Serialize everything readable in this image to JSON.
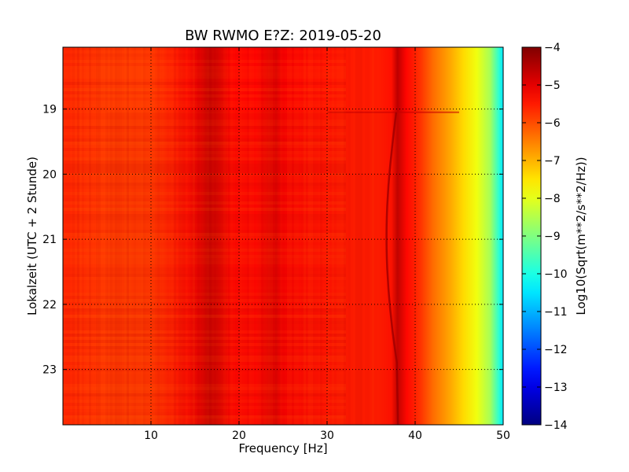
{
  "chart_data": {
    "type": "heatmap",
    "title": "BW RWMO E?Z: 2019-05-20",
    "xlabel": "Frequency [Hz]",
    "ylabel": "Lokalzeit (UTC + 2 Stunde)",
    "xlim": [
      0,
      50
    ],
    "ylim": [
      23.85,
      18.05
    ],
    "x_ticks": [
      10,
      20,
      30,
      40,
      50
    ],
    "y_ticks": [
      19,
      20,
      21,
      22,
      23
    ],
    "grid": true,
    "grid_style": "dotted",
    "colormap": "jet",
    "colorbar": {
      "label": "Log10(Sqrt(m**2/s**2/Hz))",
      "range": [
        -14,
        -4
      ],
      "ticks": [
        -4,
        -5,
        -6,
        -7,
        -8,
        -9,
        -10,
        -11,
        -12,
        -13,
        -14
      ]
    },
    "spectral_profile": {
      "frequency_hz": [
        0,
        5,
        10,
        14,
        15.5,
        16.5,
        17.5,
        19,
        22,
        23.5,
        24.2,
        25,
        28,
        33,
        36,
        37.3,
        38,
        39,
        40.5,
        42,
        44,
        45.5,
        47,
        48.5,
        49.5,
        50
      ],
      "log10_psd": [
        -5.6,
        -5.8,
        -5.8,
        -5.4,
        -5.0,
        -4.7,
        -4.8,
        -5.3,
        -5.3,
        -5.0,
        -4.95,
        -5.2,
        -5.4,
        -5.5,
        -5.5,
        -5.4,
        -4.6,
        -5.3,
        -5.7,
        -6.3,
        -6.9,
        -7.4,
        -7.9,
        -8.6,
        -9.8,
        -10.5
      ]
    },
    "features": [
      {
        "label": "event_onset",
        "time": 19.05,
        "frequency_range": [
          30,
          45
        ]
      },
      {
        "label": "drifting_line",
        "time_range": [
          19.05,
          23.85
        ],
        "frequency_range": [
          37,
          38
        ]
      }
    ]
  }
}
